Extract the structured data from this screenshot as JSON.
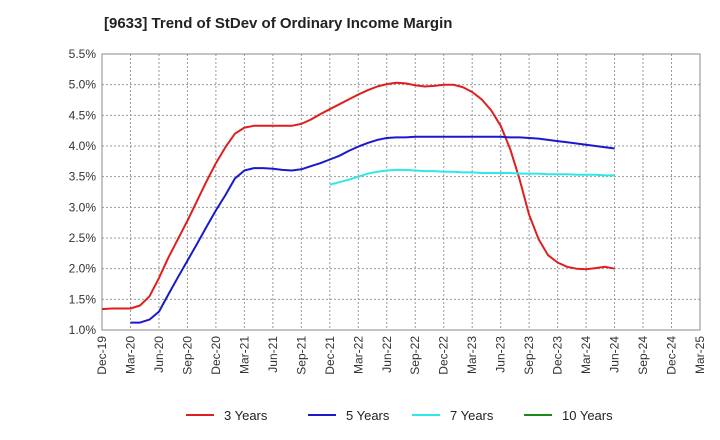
{
  "chart_data": {
    "type": "line",
    "title": "[9633]  Trend of StDev of Ordinary Income Margin",
    "xlabel": "",
    "ylabel": "",
    "x_ticks": [
      "Dec-19",
      "Mar-20",
      "Jun-20",
      "Sep-20",
      "Dec-20",
      "Mar-21",
      "Jun-21",
      "Sep-21",
      "Dec-21",
      "Mar-22",
      "Jun-22",
      "Sep-22",
      "Dec-22",
      "Mar-23",
      "Jun-23",
      "Sep-23",
      "Dec-23",
      "Mar-24",
      "Jun-24",
      "Sep-24",
      "Dec-24",
      "Mar-25"
    ],
    "y_ticks": [
      "1.0%",
      "1.5%",
      "2.0%",
      "2.5%",
      "3.0%",
      "3.5%",
      "4.0%",
      "4.5%",
      "5.0%",
      "5.5%"
    ],
    "ylim": [
      1.0,
      5.5
    ],
    "grid": true,
    "legend_position": "bottom",
    "series": [
      {
        "name": "3 Years",
        "color": "#dd1f1f",
        "points": [
          [
            "Dec-19",
            1.34
          ],
          [
            "Jan-20",
            1.35
          ],
          [
            "Feb-20",
            1.35
          ],
          [
            "Mar-20",
            1.35
          ],
          [
            "Apr-20",
            1.4
          ],
          [
            "May-20",
            1.55
          ],
          [
            "Jun-20",
            1.85
          ],
          [
            "Jul-20",
            2.18
          ],
          [
            "Aug-20",
            2.48
          ],
          [
            "Sep-20",
            2.78
          ],
          [
            "Oct-20",
            3.1
          ],
          [
            "Nov-20",
            3.42
          ],
          [
            "Dec-20",
            3.72
          ],
          [
            "Jan-21",
            3.98
          ],
          [
            "Feb-21",
            4.2
          ],
          [
            "Mar-21",
            4.3
          ],
          [
            "Apr-21",
            4.33
          ],
          [
            "May-21",
            4.33
          ],
          [
            "Jun-21",
            4.33
          ],
          [
            "Jul-21",
            4.33
          ],
          [
            "Aug-21",
            4.33
          ],
          [
            "Sep-21",
            4.36
          ],
          [
            "Oct-21",
            4.43
          ],
          [
            "Nov-21",
            4.52
          ],
          [
            "Dec-21",
            4.6
          ],
          [
            "Jan-22",
            4.68
          ],
          [
            "Feb-22",
            4.76
          ],
          [
            "Mar-22",
            4.84
          ],
          [
            "Apr-22",
            4.91
          ],
          [
            "May-22",
            4.97
          ],
          [
            "Jun-22",
            5.01
          ],
          [
            "Jul-22",
            5.03
          ],
          [
            "Aug-22",
            5.02
          ],
          [
            "Sep-22",
            4.99
          ],
          [
            "Oct-22",
            4.97
          ],
          [
            "Nov-22",
            4.98
          ],
          [
            "Dec-22",
            5.0
          ],
          [
            "Jan-23",
            5.0
          ],
          [
            "Feb-23",
            4.96
          ],
          [
            "Mar-23",
            4.88
          ],
          [
            "Apr-23",
            4.76
          ],
          [
            "May-23",
            4.58
          ],
          [
            "Jun-23",
            4.33
          ],
          [
            "Jul-23",
            3.95
          ],
          [
            "Aug-23",
            3.45
          ],
          [
            "Sep-23",
            2.88
          ],
          [
            "Oct-23",
            2.48
          ],
          [
            "Nov-23",
            2.22
          ],
          [
            "Dec-23",
            2.1
          ],
          [
            "Jan-24",
            2.03
          ],
          [
            "Feb-24",
            2.0
          ],
          [
            "Mar-24",
            1.99
          ],
          [
            "Apr-24",
            2.01
          ],
          [
            "May-24",
            2.03
          ],
          [
            "Jun-24",
            2.0
          ]
        ]
      },
      {
        "name": "5 Years",
        "color": "#1a1acc",
        "points": [
          [
            "Mar-20",
            1.12
          ],
          [
            "Apr-20",
            1.12
          ],
          [
            "May-20",
            1.17
          ],
          [
            "Jun-20",
            1.3
          ],
          [
            "Jul-20",
            1.58
          ],
          [
            "Aug-20",
            1.86
          ],
          [
            "Sep-20",
            2.13
          ],
          [
            "Oct-20",
            2.4
          ],
          [
            "Nov-20",
            2.68
          ],
          [
            "Dec-20",
            2.95
          ],
          [
            "Jan-21",
            3.2
          ],
          [
            "Feb-21",
            3.47
          ],
          [
            "Mar-21",
            3.6
          ],
          [
            "Apr-21",
            3.64
          ],
          [
            "May-21",
            3.64
          ],
          [
            "Jun-21",
            3.63
          ],
          [
            "Jul-21",
            3.61
          ],
          [
            "Aug-21",
            3.6
          ],
          [
            "Sep-21",
            3.62
          ],
          [
            "Oct-21",
            3.67
          ],
          [
            "Nov-21",
            3.72
          ],
          [
            "Dec-21",
            3.78
          ],
          [
            "Jan-22",
            3.84
          ],
          [
            "Feb-22",
            3.92
          ],
          [
            "Mar-22",
            3.99
          ],
          [
            "Apr-22",
            4.05
          ],
          [
            "May-22",
            4.1
          ],
          [
            "Jun-22",
            4.13
          ],
          [
            "Jul-22",
            4.14
          ],
          [
            "Aug-22",
            4.14
          ],
          [
            "Sep-22",
            4.15
          ],
          [
            "Oct-22",
            4.15
          ],
          [
            "Nov-22",
            4.15
          ],
          [
            "Dec-22",
            4.15
          ],
          [
            "Jan-23",
            4.15
          ],
          [
            "Feb-23",
            4.15
          ],
          [
            "Mar-23",
            4.15
          ],
          [
            "Apr-23",
            4.15
          ],
          [
            "May-23",
            4.15
          ],
          [
            "Jun-23",
            4.15
          ],
          [
            "Jul-23",
            4.14
          ],
          [
            "Aug-23",
            4.14
          ],
          [
            "Sep-23",
            4.13
          ],
          [
            "Oct-23",
            4.12
          ],
          [
            "Nov-23",
            4.1
          ],
          [
            "Dec-23",
            4.08
          ],
          [
            "Jan-24",
            4.06
          ],
          [
            "Feb-24",
            4.04
          ],
          [
            "Mar-24",
            4.02
          ],
          [
            "Apr-24",
            4.0
          ],
          [
            "May-24",
            3.98
          ],
          [
            "Jun-24",
            3.96
          ]
        ]
      },
      {
        "name": "7 Years",
        "color": "#2ee8e8",
        "points": [
          [
            "Dec-21",
            3.37
          ],
          [
            "Jan-22",
            3.41
          ],
          [
            "Feb-22",
            3.45
          ],
          [
            "Mar-22",
            3.5
          ],
          [
            "Apr-22",
            3.55
          ],
          [
            "May-22",
            3.58
          ],
          [
            "Jun-22",
            3.6
          ],
          [
            "Jul-22",
            3.61
          ],
          [
            "Aug-22",
            3.61
          ],
          [
            "Sep-22",
            3.6
          ],
          [
            "Oct-22",
            3.59
          ],
          [
            "Nov-22",
            3.59
          ],
          [
            "Dec-22",
            3.58
          ],
          [
            "Jan-23",
            3.58
          ],
          [
            "Feb-23",
            3.57
          ],
          [
            "Mar-23",
            3.57
          ],
          [
            "Apr-23",
            3.56
          ],
          [
            "May-23",
            3.56
          ],
          [
            "Jun-23",
            3.56
          ],
          [
            "Jul-23",
            3.56
          ],
          [
            "Aug-23",
            3.55
          ],
          [
            "Sep-23",
            3.55
          ],
          [
            "Oct-23",
            3.55
          ],
          [
            "Nov-23",
            3.54
          ],
          [
            "Dec-23",
            3.54
          ],
          [
            "Jan-24",
            3.54
          ],
          [
            "Feb-24",
            3.53
          ],
          [
            "Mar-24",
            3.53
          ],
          [
            "Apr-24",
            3.53
          ],
          [
            "May-24",
            3.52
          ],
          [
            "Jun-24",
            3.52
          ]
        ]
      },
      {
        "name": "10 Years",
        "color": "#1a8a1a",
        "points": []
      }
    ]
  }
}
